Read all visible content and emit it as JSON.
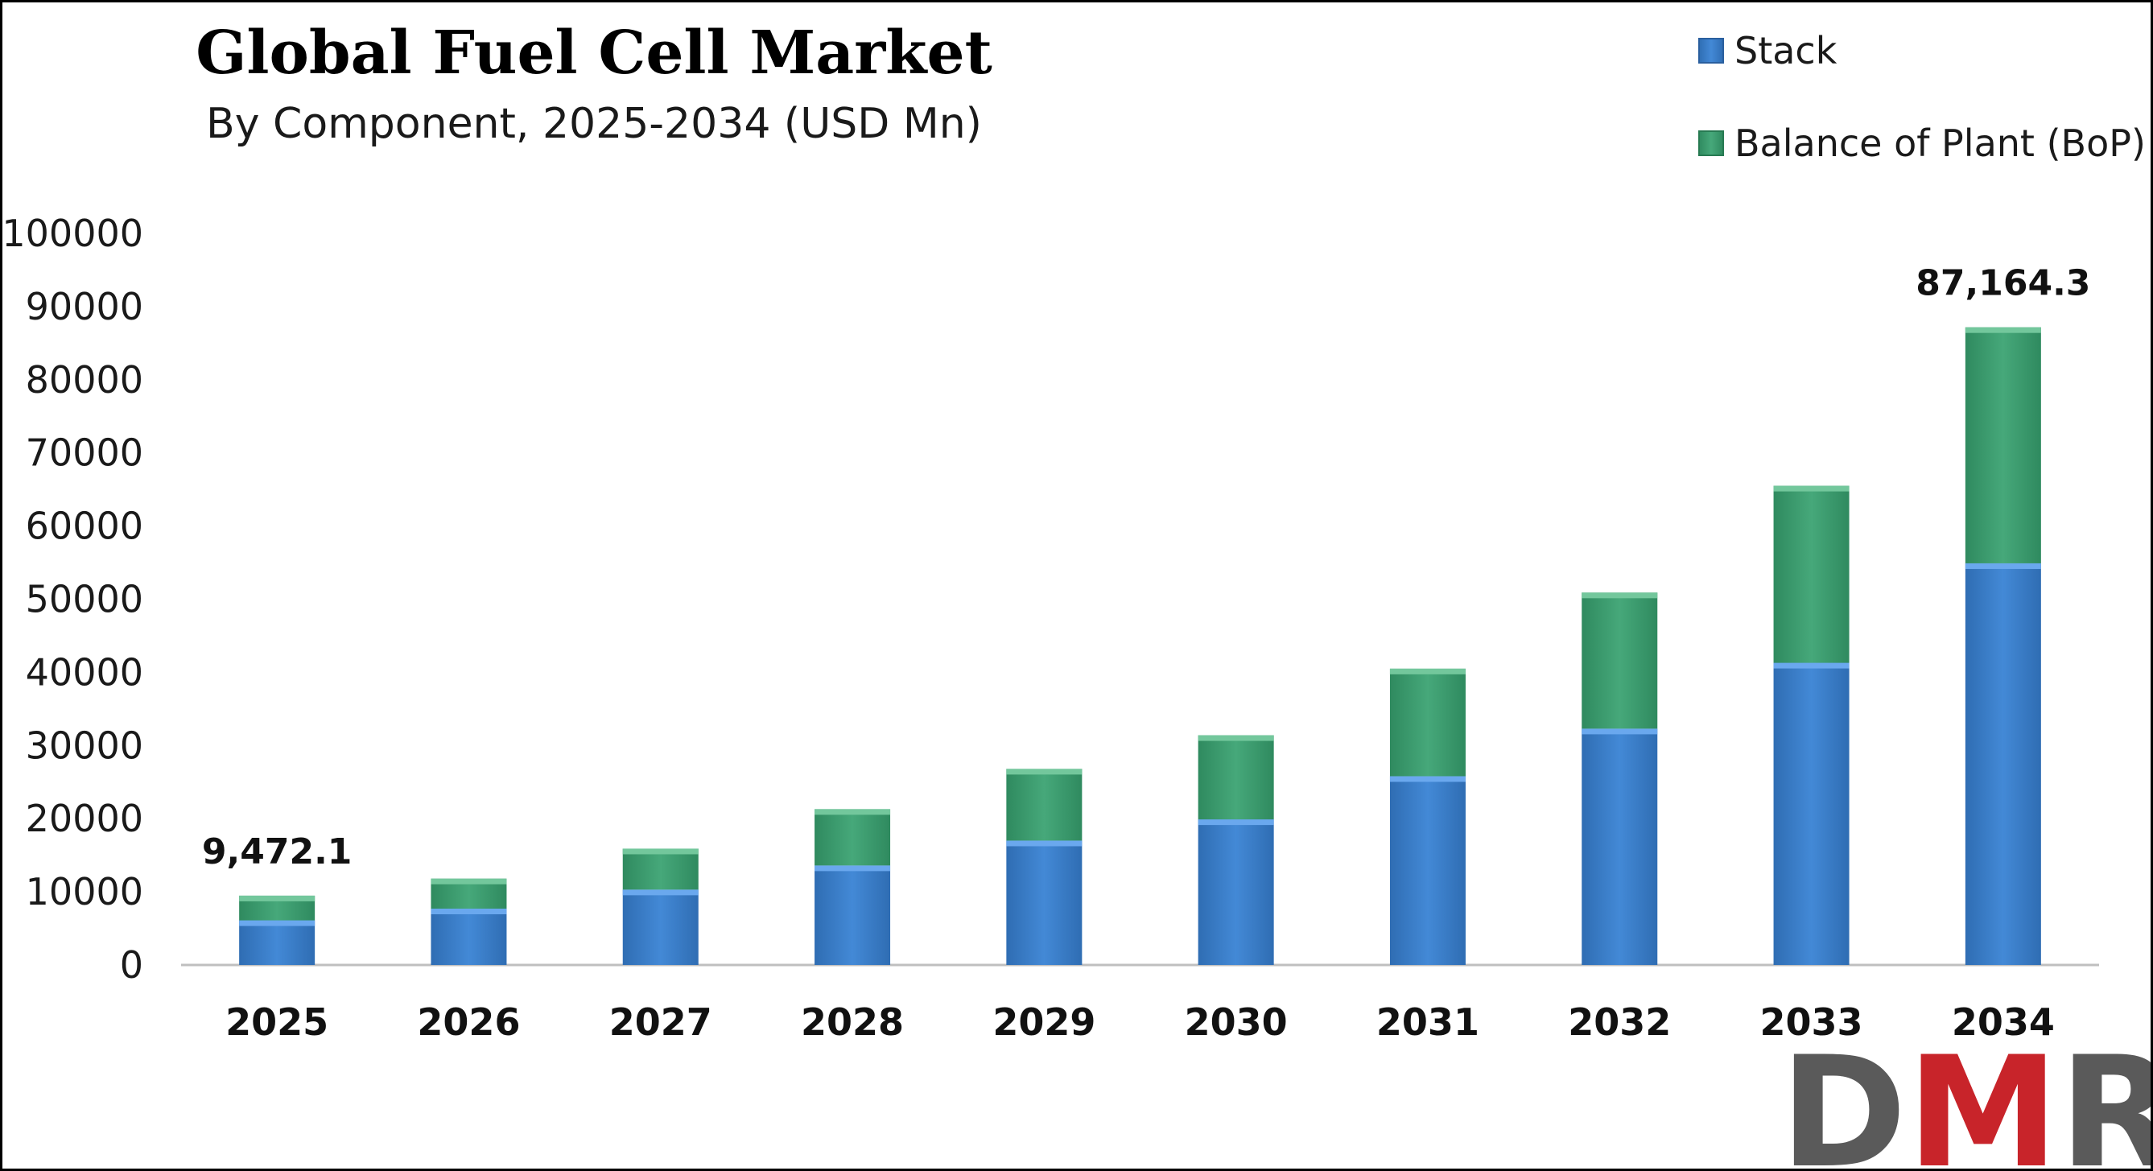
{
  "title": "Global Fuel Cell Market",
  "subtitle": "By Component, 2025-2034 (USD Mn)",
  "logo": {
    "text": "DMR",
    "icon": "dmr-logo"
  },
  "colors": {
    "stack": "#3a7ec8",
    "stack_top": "#6aa8ee",
    "bop": "#3a9a6e",
    "bop_top": "#73c79c",
    "axis": "#bfbfbf",
    "logo_grey": "#5a5a5a",
    "logo_red": "#c8242a"
  },
  "chart_data": {
    "type": "bar",
    "stacked": true,
    "categories": [
      "2025",
      "2026",
      "2027",
      "2028",
      "2029",
      "2030",
      "2031",
      "2032",
      "2033",
      "2034"
    ],
    "series": [
      {
        "name": "Stack",
        "values": [
          6100,
          7700,
          10300,
          13600,
          17000,
          19900,
          25800,
          32300,
          41300,
          54900
        ]
      },
      {
        "name": "Balance of Plant (BoP)",
        "values": [
          3372.1,
          4100,
          5600,
          7700,
          9800,
          11500,
          14700,
          18600,
          24200,
          32264.3
        ]
      }
    ],
    "totals": [
      9472.1,
      11800,
      15900,
      21300,
      26800,
      31400,
      40500,
      50900,
      65500,
      87164.3
    ],
    "data_labels": [
      {
        "category": "2025",
        "text": "9,472.1"
      },
      {
        "category": "2034",
        "text": "87,164.3"
      }
    ],
    "yticks": [
      "0",
      "10000",
      "20000",
      "30000",
      "40000",
      "50000",
      "60000",
      "70000",
      "80000",
      "90000",
      "100000"
    ],
    "ylim": [
      0,
      100000
    ],
    "grid": false,
    "legend_position": "top-right",
    "xlabel": "",
    "ylabel": ""
  }
}
